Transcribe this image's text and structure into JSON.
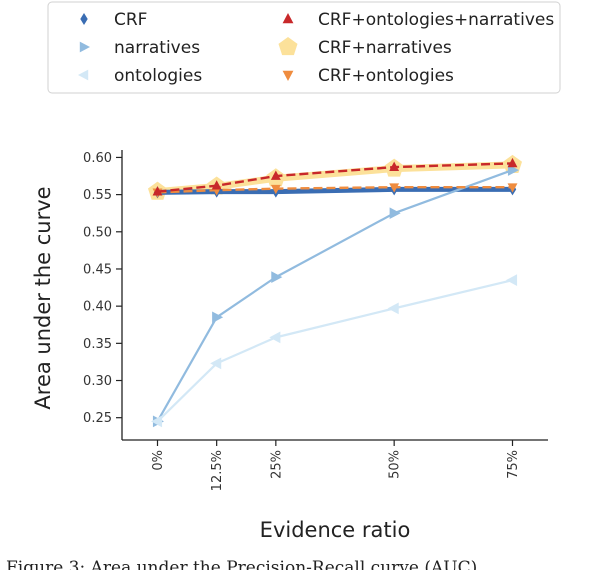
{
  "chart_data": {
    "type": "line",
    "title": "",
    "xlabel": "Evidence ratio",
    "ylabel": "Area under the curve",
    "categories": [
      "0%",
      "12.5%",
      "25%",
      "50%",
      "75%"
    ],
    "x": [
      0,
      12.5,
      25,
      50,
      75
    ],
    "xlim": [
      -7.5,
      82.5
    ],
    "ylim": [
      0.22,
      0.61
    ],
    "yticks": [
      0.25,
      0.3,
      0.35,
      0.4,
      0.45,
      0.5,
      0.55,
      0.6
    ],
    "grid": false,
    "legend_position": "top",
    "series": [
      {
        "name": "CRF",
        "marker": "diamond",
        "color": "#3a6db3",
        "line": "solid",
        "values": [
          0.553,
          0.554,
          0.554,
          0.557,
          0.557
        ]
      },
      {
        "name": "narratives",
        "marker": "triangle-right",
        "color": "#91bbdf",
        "line": "solid",
        "values": [
          0.245,
          0.385,
          0.439,
          0.525,
          0.583
        ]
      },
      {
        "name": "ontologies",
        "marker": "triangle-left",
        "color": "#d3e8f6",
        "line": "solid",
        "values": [
          0.245,
          0.323,
          0.358,
          0.397,
          0.435
        ]
      },
      {
        "name": "CRF+ontologies+narratives",
        "marker": "triangle-up",
        "color": "#c8282a",
        "line": "dashed",
        "values": [
          0.554,
          0.562,
          0.575,
          0.587,
          0.592
        ]
      },
      {
        "name": "CRF+narratives",
        "marker": "pentagon",
        "color": "#fce19a",
        "line": "solid",
        "values": [
          0.554,
          0.561,
          0.572,
          0.585,
          0.59
        ]
      },
      {
        "name": "CRF+ontologies",
        "marker": "triangle-down",
        "color": "#ef8c3f",
        "line": "dashed",
        "values": [
          0.553,
          0.556,
          0.558,
          0.56,
          0.56
        ]
      }
    ]
  },
  "caption": "Figure 3: Area under the Precision-Recall curve (AUC)"
}
